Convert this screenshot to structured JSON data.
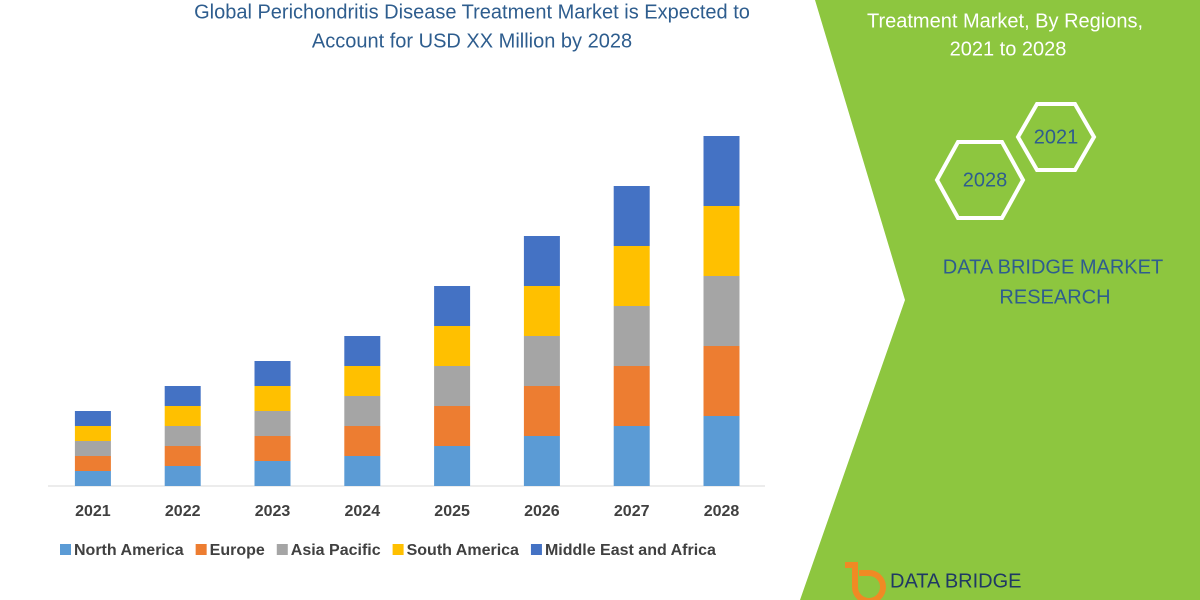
{
  "chart_data": {
    "type": "stacked_bar",
    "title": [
      "Global Perichondritis Disease Treatment Market is Expected to",
      "Account for USD XX Million by 2028"
    ],
    "categories": [
      "2021",
      "2022",
      "2023",
      "2024",
      "2025",
      "2026",
      "2027",
      "2028"
    ],
    "series": [
      {
        "name": "North America",
        "color": "#5b9bd5",
        "values": [
          15,
          20,
          25,
          30,
          40,
          50,
          60,
          70
        ]
      },
      {
        "name": "Europe",
        "color": "#ed7d31",
        "values": [
          15,
          20,
          25,
          30,
          40,
          50,
          60,
          70
        ]
      },
      {
        "name": "Asia Pacific",
        "color": "#a5a5a5",
        "values": [
          15,
          20,
          25,
          30,
          40,
          50,
          60,
          70
        ]
      },
      {
        "name": "South America",
        "color": "#ffc000",
        "values": [
          15,
          20,
          25,
          30,
          40,
          50,
          60,
          70
        ]
      },
      {
        "name": "Middle East and Africa",
        "color": "#4472c4",
        "values": [
          15,
          20,
          25,
          30,
          40,
          50,
          60,
          70
        ]
      }
    ],
    "legend": "bottom"
  },
  "panel": {
    "heading": [
      "Treatment Market, By Regions,",
      "2021 to 2028"
    ],
    "hexagons": [
      "2021",
      "2028"
    ],
    "brand": [
      "DATA BRIDGE MARKET",
      "RESEARCH"
    ],
    "logo": "DATA BRIDGE"
  }
}
